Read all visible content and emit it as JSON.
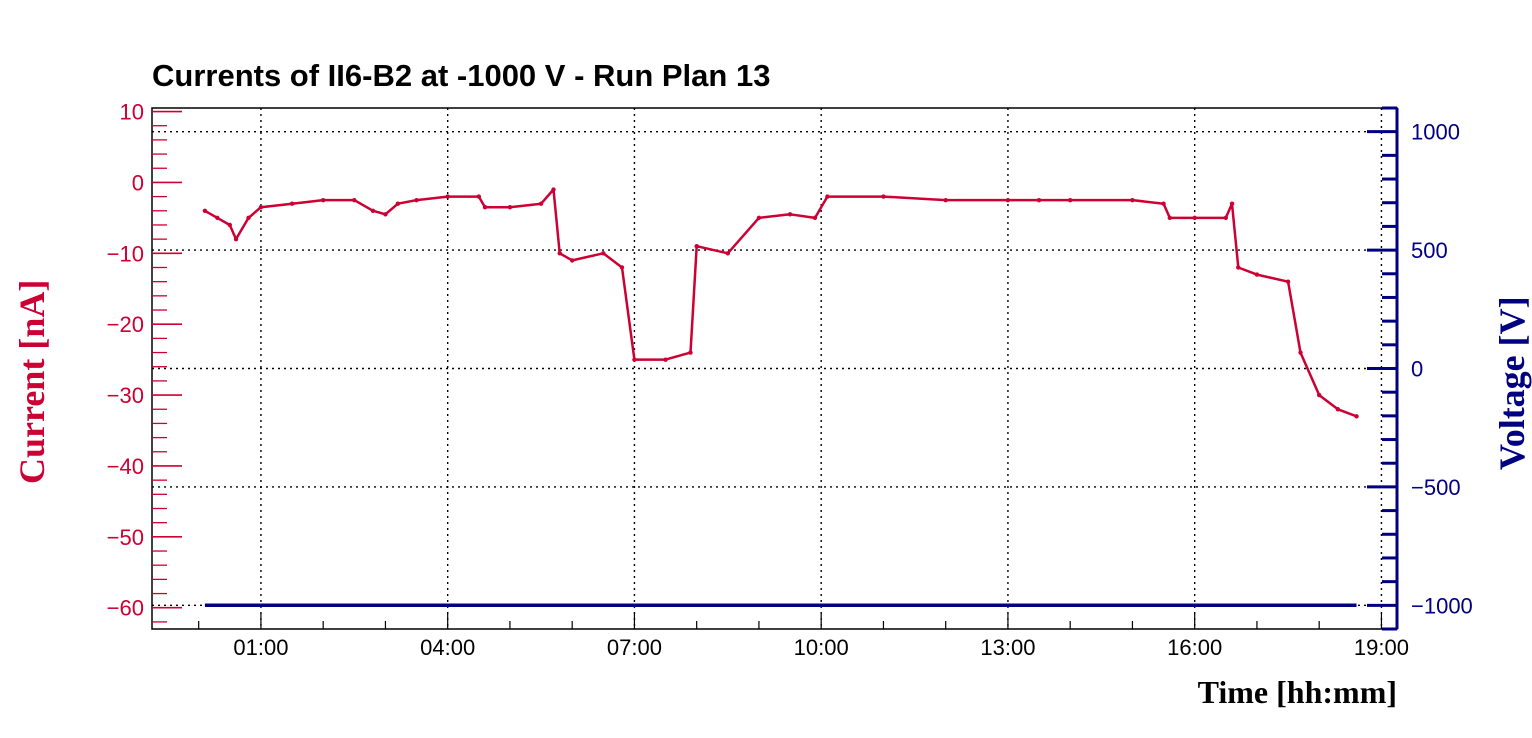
{
  "chart_data": {
    "type": "line",
    "title": "Currents of II6-B2 at -1000 V - Run Plan 13",
    "xlabel": "Time [hh:mm]",
    "ylabel_left": "Current [nA]",
    "ylabel_right": "Voltage [V]",
    "x_ticks": [
      "01:00",
      "04:00",
      "07:00",
      "10:00",
      "13:00",
      "16:00",
      "19:00"
    ],
    "xlim_hours": [
      -0.75,
      19.25
    ],
    "ylim_left": [
      -63,
      10.5
    ],
    "ylim_right": [
      -1100,
      1100
    ],
    "y_ticks_left": [
      10,
      0,
      -10,
      -20,
      -30,
      -40,
      -50,
      -60
    ],
    "y_ticks_right": [
      1000,
      500,
      0,
      -500,
      -1000
    ],
    "y_ticks_left_labels": [
      "10",
      "0",
      "−10",
      "−20",
      "−30",
      "−40",
      "−50",
      "−60"
    ],
    "y_ticks_right_labels": [
      "1000",
      "500",
      "0",
      "−500",
      "−1000"
    ],
    "grid": true,
    "colors": {
      "current": "#cc0033",
      "voltage": "#000080"
    },
    "series": [
      {
        "axis": "left",
        "x_hours": [
          0.1,
          0.3,
          0.5,
          0.6,
          0.8,
          1.0,
          1.5,
          2.0,
          2.5,
          2.8,
          3.0,
          3.2,
          3.5,
          4.0,
          4.5,
          4.6,
          5.0,
          5.5,
          5.7,
          5.8,
          6.0,
          6.5,
          6.8,
          7.0,
          7.5,
          7.9,
          8.0,
          8.5,
          9.0,
          9.5,
          9.9,
          10.1,
          11.0,
          12.0,
          13.0,
          13.5,
          14.0,
          15.0,
          15.5,
          15.6,
          16.0,
          16.5,
          16.6,
          16.7,
          17.0,
          17.5,
          17.7,
          18.0,
          18.3,
          18.6
        ],
        "y": [
          -4,
          -5,
          -6,
          -8,
          -5,
          -3.5,
          -3,
          -2.5,
          -2.5,
          -4,
          -4.5,
          -3,
          -2.5,
          -2,
          -2,
          -3.5,
          -3.5,
          -3,
          -1,
          -10,
          -11,
          -10,
          -12,
          -25,
          -25,
          -24,
          -9,
          -10,
          -5,
          -4.5,
          -5,
          -2,
          -2,
          -2.5,
          -2.5,
          -2.5,
          -2.5,
          -2.5,
          -3,
          -5,
          -5,
          -5,
          -3,
          -12,
          -13,
          -14,
          -24,
          -30,
          -32,
          -33
        ]
      },
      {
        "axis": "right",
        "x_hours": [
          0.1,
          18.6
        ],
        "y": [
          -1000,
          -1000
        ]
      }
    ]
  }
}
